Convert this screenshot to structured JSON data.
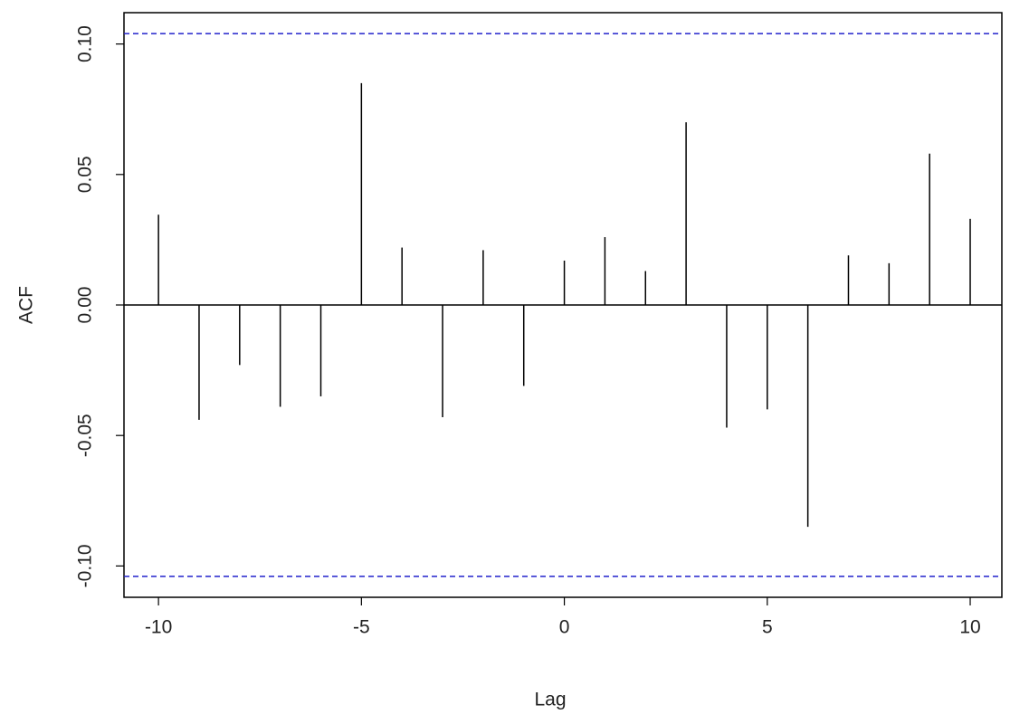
{
  "chart_data": {
    "type": "stem",
    "x": [
      -10,
      -9,
      -8,
      -7,
      -6,
      -5,
      -4,
      -3,
      -2,
      -1,
      0,
      1,
      2,
      3,
      4,
      5,
      6,
      7,
      8,
      9,
      10
    ],
    "values": [
      0.0346,
      -0.044,
      -0.023,
      -0.039,
      -0.035,
      0.085,
      0.022,
      -0.043,
      0.021,
      -0.031,
      0.017,
      0.026,
      0.013,
      0.07,
      -0.047,
      -0.04,
      -0.085,
      0.019,
      0.016,
      0.058,
      0.033
    ],
    "color": "#000000",
    "xlabel": "Lag",
    "ylabel": "ACF",
    "xlim": [
      -10.85,
      10.78
    ],
    "ylim": [
      -0.112,
      0.112
    ],
    "xticks": [
      -10,
      -5,
      0,
      5,
      10
    ],
    "yticks": [
      {
        "value": -0.1,
        "label": "-0.10"
      },
      {
        "value": -0.05,
        "label": "-0.05"
      },
      {
        "value": 0,
        "label": "0.00"
      },
      {
        "value": 0.05,
        "label": "0.05"
      },
      {
        "value": 0.1,
        "label": "0.10"
      }
    ],
    "reference_lines": [
      0.104,
      -0.104
    ],
    "reference_color": "#2222cc"
  }
}
